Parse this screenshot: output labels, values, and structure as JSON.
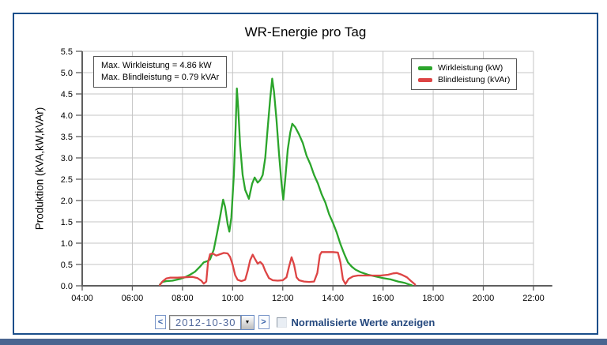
{
  "chart_data": {
    "type": "line",
    "title": "WR-Energie pro Tag",
    "ylabel": "Produktion (kVA,kW,kVAr)",
    "xlabel": "",
    "grid": true,
    "legend_position": "top-right",
    "ylim": [
      0,
      5.5
    ],
    "y_tick_step": 0.5,
    "xlim_hours": [
      4,
      22.75
    ],
    "x_ticks": [
      {
        "hour": 4,
        "label": "04:00"
      },
      {
        "hour": 6,
        "label": "06:00"
      },
      {
        "hour": 8,
        "label": "08:00"
      },
      {
        "hour": 10,
        "label": "10:00"
      },
      {
        "hour": 12,
        "label": "12:00"
      },
      {
        "hour": 14,
        "label": "14:00"
      },
      {
        "hour": 16,
        "label": "16:00"
      },
      {
        "hour": 18,
        "label": "18:00"
      },
      {
        "hour": 20,
        "label": "20:00"
      },
      {
        "hour": 22,
        "label": "22:00"
      }
    ],
    "annotation": {
      "line1": "Max. Wirkleistung = 4.86 kW",
      "line2": "Max. Blindleistung = 0.79 kVAr"
    },
    "series": [
      {
        "name": "Wirkleistung (kW)",
        "color": "#2ba52b",
        "points": [
          [
            7.1,
            0.03
          ],
          [
            7.2,
            0.09
          ],
          [
            7.35,
            0.11
          ],
          [
            7.6,
            0.12
          ],
          [
            7.9,
            0.16
          ],
          [
            8.1,
            0.2
          ],
          [
            8.3,
            0.26
          ],
          [
            8.5,
            0.33
          ],
          [
            8.7,
            0.45
          ],
          [
            8.85,
            0.55
          ],
          [
            9.0,
            0.58
          ],
          [
            9.1,
            0.62
          ],
          [
            9.25,
            0.85
          ],
          [
            9.4,
            1.3
          ],
          [
            9.5,
            1.62
          ],
          [
            9.62,
            2.02
          ],
          [
            9.7,
            1.85
          ],
          [
            9.8,
            1.45
          ],
          [
            9.87,
            1.27
          ],
          [
            9.95,
            1.6
          ],
          [
            10.05,
            2.6
          ],
          [
            10.12,
            3.7
          ],
          [
            10.17,
            4.63
          ],
          [
            10.22,
            4.2
          ],
          [
            10.3,
            3.3
          ],
          [
            10.4,
            2.6
          ],
          [
            10.5,
            2.25
          ],
          [
            10.65,
            2.04
          ],
          [
            10.78,
            2.4
          ],
          [
            10.88,
            2.54
          ],
          [
            11.0,
            2.42
          ],
          [
            11.1,
            2.48
          ],
          [
            11.2,
            2.6
          ],
          [
            11.3,
            3.0
          ],
          [
            11.4,
            3.7
          ],
          [
            11.5,
            4.4
          ],
          [
            11.58,
            4.86
          ],
          [
            11.65,
            4.55
          ],
          [
            11.75,
            3.9
          ],
          [
            11.85,
            3.1
          ],
          [
            11.95,
            2.4
          ],
          [
            12.02,
            2.02
          ],
          [
            12.1,
            2.5
          ],
          [
            12.2,
            3.2
          ],
          [
            12.3,
            3.6
          ],
          [
            12.38,
            3.8
          ],
          [
            12.5,
            3.72
          ],
          [
            12.65,
            3.55
          ],
          [
            12.8,
            3.35
          ],
          [
            12.95,
            3.05
          ],
          [
            13.1,
            2.85
          ],
          [
            13.25,
            2.6
          ],
          [
            13.4,
            2.4
          ],
          [
            13.55,
            2.15
          ],
          [
            13.7,
            1.95
          ],
          [
            13.85,
            1.68
          ],
          [
            14.0,
            1.48
          ],
          [
            14.15,
            1.25
          ],
          [
            14.3,
            0.98
          ],
          [
            14.45,
            0.75
          ],
          [
            14.6,
            0.55
          ],
          [
            14.75,
            0.45
          ],
          [
            14.9,
            0.38
          ],
          [
            15.1,
            0.32
          ],
          [
            15.4,
            0.26
          ],
          [
            15.7,
            0.22
          ],
          [
            16.0,
            0.18
          ],
          [
            16.3,
            0.15
          ],
          [
            16.6,
            0.1
          ],
          [
            16.85,
            0.07
          ],
          [
            17.05,
            0.03
          ],
          [
            17.15,
            0.01
          ]
        ]
      },
      {
        "name": "Blindleistung (kVAr)",
        "color": "#dd4444",
        "points": [
          [
            7.1,
            0.02
          ],
          [
            7.2,
            0.1
          ],
          [
            7.35,
            0.17
          ],
          [
            7.5,
            0.19
          ],
          [
            7.8,
            0.19
          ],
          [
            8.1,
            0.2
          ],
          [
            8.4,
            0.21
          ],
          [
            8.6,
            0.18
          ],
          [
            8.75,
            0.12
          ],
          [
            8.85,
            0.05
          ],
          [
            8.95,
            0.1
          ],
          [
            9.02,
            0.55
          ],
          [
            9.1,
            0.74
          ],
          [
            9.2,
            0.76
          ],
          [
            9.35,
            0.71
          ],
          [
            9.5,
            0.74
          ],
          [
            9.65,
            0.77
          ],
          [
            9.8,
            0.76
          ],
          [
            9.9,
            0.68
          ],
          [
            10.0,
            0.5
          ],
          [
            10.1,
            0.25
          ],
          [
            10.2,
            0.14
          ],
          [
            10.35,
            0.11
          ],
          [
            10.5,
            0.14
          ],
          [
            10.6,
            0.35
          ],
          [
            10.7,
            0.6
          ],
          [
            10.8,
            0.73
          ],
          [
            10.9,
            0.62
          ],
          [
            11.0,
            0.52
          ],
          [
            11.1,
            0.56
          ],
          [
            11.2,
            0.5
          ],
          [
            11.3,
            0.35
          ],
          [
            11.45,
            0.18
          ],
          [
            11.6,
            0.13
          ],
          [
            11.8,
            0.12
          ],
          [
            12.0,
            0.13
          ],
          [
            12.15,
            0.2
          ],
          [
            12.25,
            0.45
          ],
          [
            12.35,
            0.67
          ],
          [
            12.45,
            0.5
          ],
          [
            12.55,
            0.2
          ],
          [
            12.65,
            0.13
          ],
          [
            12.85,
            0.1
          ],
          [
            13.05,
            0.09
          ],
          [
            13.25,
            0.1
          ],
          [
            13.38,
            0.3
          ],
          [
            13.48,
            0.72
          ],
          [
            13.55,
            0.79
          ],
          [
            13.75,
            0.79
          ],
          [
            14.0,
            0.79
          ],
          [
            14.2,
            0.78
          ],
          [
            14.3,
            0.55
          ],
          [
            14.4,
            0.15
          ],
          [
            14.5,
            0.04
          ],
          [
            14.62,
            0.16
          ],
          [
            14.8,
            0.22
          ],
          [
            15.0,
            0.24
          ],
          [
            15.3,
            0.24
          ],
          [
            15.6,
            0.24
          ],
          [
            15.9,
            0.24
          ],
          [
            16.2,
            0.26
          ],
          [
            16.4,
            0.29
          ],
          [
            16.55,
            0.3
          ],
          [
            16.75,
            0.26
          ],
          [
            16.95,
            0.2
          ],
          [
            17.1,
            0.12
          ],
          [
            17.28,
            0.03
          ]
        ]
      }
    ]
  },
  "controls": {
    "prev_label": "<",
    "date_value": "2012-10-30",
    "dropdown_icon": "▼",
    "next_label": ">",
    "checkbox_checked": false,
    "checkbox_label": "Normalisierte Werte anzeigen"
  },
  "colors": {
    "panel_border": "#1a4e8a",
    "bottom_bar": "#4a6590",
    "grid_line": "#c4c4c4",
    "axis_line": "#5e5e5e"
  }
}
